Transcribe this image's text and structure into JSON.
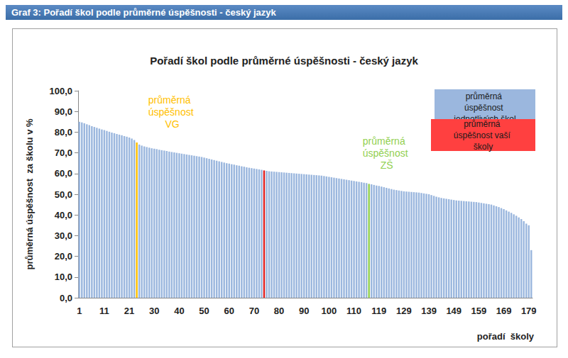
{
  "header": "Graf 3: Pořadí škol podle průměrné úspěšnosti - český jazyk",
  "chart_data": {
    "type": "bar",
    "title": "Pořadí škol podle průměrné úspěšnosti - český jazyk",
    "y_label": "průměrná úspěšnost  za školu v %",
    "x_label": "pořadí  školy",
    "categories": [
      "1",
      null,
      null,
      null,
      null,
      null,
      null,
      null,
      null,
      null,
      "11",
      null,
      null,
      null,
      null,
      null,
      null,
      null,
      null,
      null,
      "21",
      null,
      null,
      null,
      null,
      null,
      null,
      null,
      null,
      null,
      "30",
      null,
      null,
      null,
      null,
      null,
      null,
      null,
      null,
      null,
      "40",
      null,
      null,
      null,
      null,
      null,
      null,
      null,
      null,
      null,
      "50",
      null,
      null,
      null,
      null,
      null,
      null,
      null,
      null,
      null,
      "60",
      null,
      null,
      null,
      null,
      null,
      null,
      null,
      null,
      null,
      "70",
      null,
      null,
      null,
      null,
      null,
      null,
      null,
      null,
      null,
      "80",
      null,
      null,
      null,
      null,
      null,
      null,
      null,
      null,
      null,
      "90",
      null,
      null,
      null,
      null,
      null,
      null,
      null,
      null,
      null,
      "100",
      null,
      null,
      null,
      null,
      null,
      null,
      null,
      null,
      null,
      "110",
      null,
      null,
      null,
      null,
      null,
      null,
      null,
      null,
      null,
      "119",
      null,
      null,
      null,
      null,
      null,
      null,
      null,
      null,
      null,
      "129",
      null,
      null,
      null,
      null,
      null,
      null,
      null,
      null,
      null,
      "139",
      null,
      null,
      null,
      null,
      null,
      null,
      null,
      null,
      null,
      "149",
      null,
      null,
      null,
      null,
      null,
      null,
      null,
      null,
      null,
      "159",
      null,
      null,
      null,
      null,
      null,
      null,
      null,
      null,
      null,
      "169",
      null,
      null,
      null,
      null,
      null,
      null,
      null,
      null,
      null,
      "179",
      null
    ],
    "values": [
      85.0,
      84.7,
      84.3,
      83.8,
      83.4,
      82.9,
      82.5,
      82.1,
      81.7,
      81.3,
      81.0,
      80.6,
      80.2,
      79.8,
      79.5,
      79.1,
      78.8,
      78.5,
      78.1,
      77.8,
      77.4,
      76.9,
      76.2,
      75.0,
      74.0,
      73.5,
      73.1,
      72.8,
      72.5,
      72.2,
      72.0,
      71.8,
      71.5,
      71.3,
      71.1,
      70.9,
      70.6,
      70.4,
      70.2,
      70.0,
      69.8,
      69.6,
      69.4,
      69.2,
      69.0,
      68.8,
      68.6,
      68.4,
      68.2,
      68.0,
      67.7,
      67.4,
      67.1,
      66.8,
      66.5,
      66.2,
      65.9,
      65.6,
      65.3,
      65.0,
      64.8,
      64.5,
      64.3,
      64.0,
      63.8,
      63.5,
      63.3,
      63.0,
      62.8,
      62.6,
      62.4,
      62.2,
      62.0,
      61.8,
      61.5,
      61.3,
      61.1,
      61.0,
      60.9,
      60.8,
      60.7,
      60.6,
      60.5,
      60.4,
      60.3,
      60.2,
      60.1,
      60.0,
      59.9,
      59.8,
      59.7,
      59.6,
      59.5,
      59.4,
      59.3,
      59.2,
      59.1,
      59.0,
      58.8,
      58.6,
      58.4,
      58.2,
      58.0,
      57.8,
      57.6,
      57.4,
      57.2,
      57.0,
      56.8,
      56.6,
      56.4,
      56.2,
      56.0,
      55.8,
      55.6,
      55.4,
      55.0,
      54.8,
      54.5,
      54.2,
      54.0,
      53.7,
      53.4,
      53.1,
      52.8,
      52.5,
      52.2,
      52.0,
      51.8,
      51.6,
      51.4,
      51.3,
      51.2,
      51.1,
      51.0,
      50.9,
      50.8,
      50.6,
      50.4,
      50.2,
      50.0,
      49.6,
      49.2,
      48.8,
      48.5,
      48.2,
      48.0,
      47.8,
      47.6,
      47.4,
      47.2,
      47.0,
      46.9,
      46.8,
      46.7,
      46.6,
      46.5,
      46.4,
      46.3,
      46.2,
      46.0,
      45.8,
      45.6,
      45.4,
      45.2,
      45.0,
      44.6,
      44.2,
      43.8,
      43.3,
      42.8,
      42.2,
      41.6,
      41.0,
      40.3,
      39.6,
      38.8,
      38.0,
      37.0,
      35.8,
      35.0,
      23.0
    ],
    "colors": [
      "#9bb7de",
      "#9bb7de",
      "#9bb7de",
      "#9bb7de",
      "#9bb7de",
      "#9bb7de",
      "#9bb7de",
      "#9bb7de",
      "#9bb7de",
      "#9bb7de",
      "#9bb7de",
      "#9bb7de",
      "#9bb7de",
      "#9bb7de",
      "#9bb7de",
      "#9bb7de",
      "#9bb7de",
      "#9bb7de",
      "#9bb7de",
      "#9bb7de",
      "#9bb7de",
      "#9bb7de",
      "#9bb7de",
      "#ffc000",
      "#9bb7de",
      "#9bb7de",
      "#9bb7de",
      "#9bb7de",
      "#9bb7de",
      "#9bb7de",
      "#9bb7de",
      "#9bb7de",
      "#9bb7de",
      "#9bb7de",
      "#9bb7de",
      "#9bb7de",
      "#9bb7de",
      "#9bb7de",
      "#9bb7de",
      "#9bb7de",
      "#9bb7de",
      "#9bb7de",
      "#9bb7de",
      "#9bb7de",
      "#9bb7de",
      "#9bb7de",
      "#9bb7de",
      "#9bb7de",
      "#9bb7de",
      "#9bb7de",
      "#9bb7de",
      "#9bb7de",
      "#9bb7de",
      "#9bb7de",
      "#9bb7de",
      "#9bb7de",
      "#9bb7de",
      "#9bb7de",
      "#9bb7de",
      "#9bb7de",
      "#9bb7de",
      "#9bb7de",
      "#9bb7de",
      "#9bb7de",
      "#9bb7de",
      "#9bb7de",
      "#9bb7de",
      "#9bb7de",
      "#9bb7de",
      "#9bb7de",
      "#9bb7de",
      "#9bb7de",
      "#9bb7de",
      "#9bb7de",
      "#e02020",
      "#9bb7de",
      "#9bb7de",
      "#9bb7de",
      "#9bb7de",
      "#9bb7de",
      "#9bb7de",
      "#9bb7de",
      "#9bb7de",
      "#9bb7de",
      "#9bb7de",
      "#9bb7de",
      "#9bb7de",
      "#9bb7de",
      "#9bb7de",
      "#9bb7de",
      "#9bb7de",
      "#9bb7de",
      "#9bb7de",
      "#9bb7de",
      "#9bb7de",
      "#9bb7de",
      "#9bb7de",
      "#9bb7de",
      "#9bb7de",
      "#9bb7de",
      "#9bb7de",
      "#9bb7de",
      "#9bb7de",
      "#9bb7de",
      "#9bb7de",
      "#9bb7de",
      "#9bb7de",
      "#9bb7de",
      "#9bb7de",
      "#9bb7de",
      "#9bb7de",
      "#9bb7de",
      "#9bb7de",
      "#9bb7de",
      "#9bb7de",
      "#9bb7de",
      "#92d050",
      "#9bb7de",
      "#9bb7de",
      "#9bb7de",
      "#9bb7de",
      "#9bb7de",
      "#9bb7de",
      "#9bb7de",
      "#9bb7de",
      "#9bb7de",
      "#9bb7de",
      "#9bb7de",
      "#9bb7de",
      "#9bb7de",
      "#9bb7de",
      "#9bb7de",
      "#9bb7de",
      "#9bb7de",
      "#9bb7de",
      "#9bb7de",
      "#9bb7de",
      "#9bb7de",
      "#9bb7de",
      "#9bb7de",
      "#9bb7de",
      "#9bb7de",
      "#9bb7de",
      "#9bb7de",
      "#9bb7de",
      "#9bb7de",
      "#9bb7de",
      "#9bb7de",
      "#9bb7de",
      "#9bb7de",
      "#9bb7de",
      "#9bb7de",
      "#9bb7de",
      "#9bb7de",
      "#9bb7de",
      "#9bb7de",
      "#9bb7de",
      "#9bb7de",
      "#9bb7de",
      "#9bb7de",
      "#9bb7de",
      "#9bb7de",
      "#9bb7de",
      "#9bb7de",
      "#9bb7de",
      "#9bb7de",
      "#9bb7de",
      "#9bb7de",
      "#9bb7de",
      "#9bb7de",
      "#9bb7de",
      "#9bb7de",
      "#9bb7de",
      "#9bb7de",
      "#9bb7de",
      "#9bb7de",
      "#9bb7de",
      "#9bb7de",
      "#9bb7de",
      "#9bb7de",
      "#9bb7de",
      "#9bb7de"
    ],
    "ylim": [
      0,
      100
    ],
    "yticks": [
      {
        "value": 0,
        "label": "0,0"
      },
      {
        "value": 10,
        "label": "10,0"
      },
      {
        "value": 20,
        "label": "20,0"
      },
      {
        "value": 30,
        "label": "30,0"
      },
      {
        "value": 40,
        "label": "40,0"
      },
      {
        "value": 50,
        "label": "50,0"
      },
      {
        "value": 60,
        "label": "60,0"
      },
      {
        "value": 70,
        "label": "70,0"
      },
      {
        "value": 80,
        "label": "80,0"
      },
      {
        "value": 90,
        "label": "90,0"
      },
      {
        "value": 100,
        "label": "100,0"
      }
    ],
    "grid": false,
    "legend": "top-right",
    "legend_items": [
      {
        "label": "průměrná úspěšnost jednotlivých škol",
        "color": "#9bb7de"
      },
      {
        "label": "průměrná úspěšnost vaší školy",
        "color": "#ff4040"
      }
    ],
    "annotations": [
      {
        "text": "průměrná úspěšnost VG",
        "color": "#ffc000"
      },
      {
        "text": "průměrná úspěšnost ZŠ",
        "color": "#92d050"
      }
    ]
  }
}
